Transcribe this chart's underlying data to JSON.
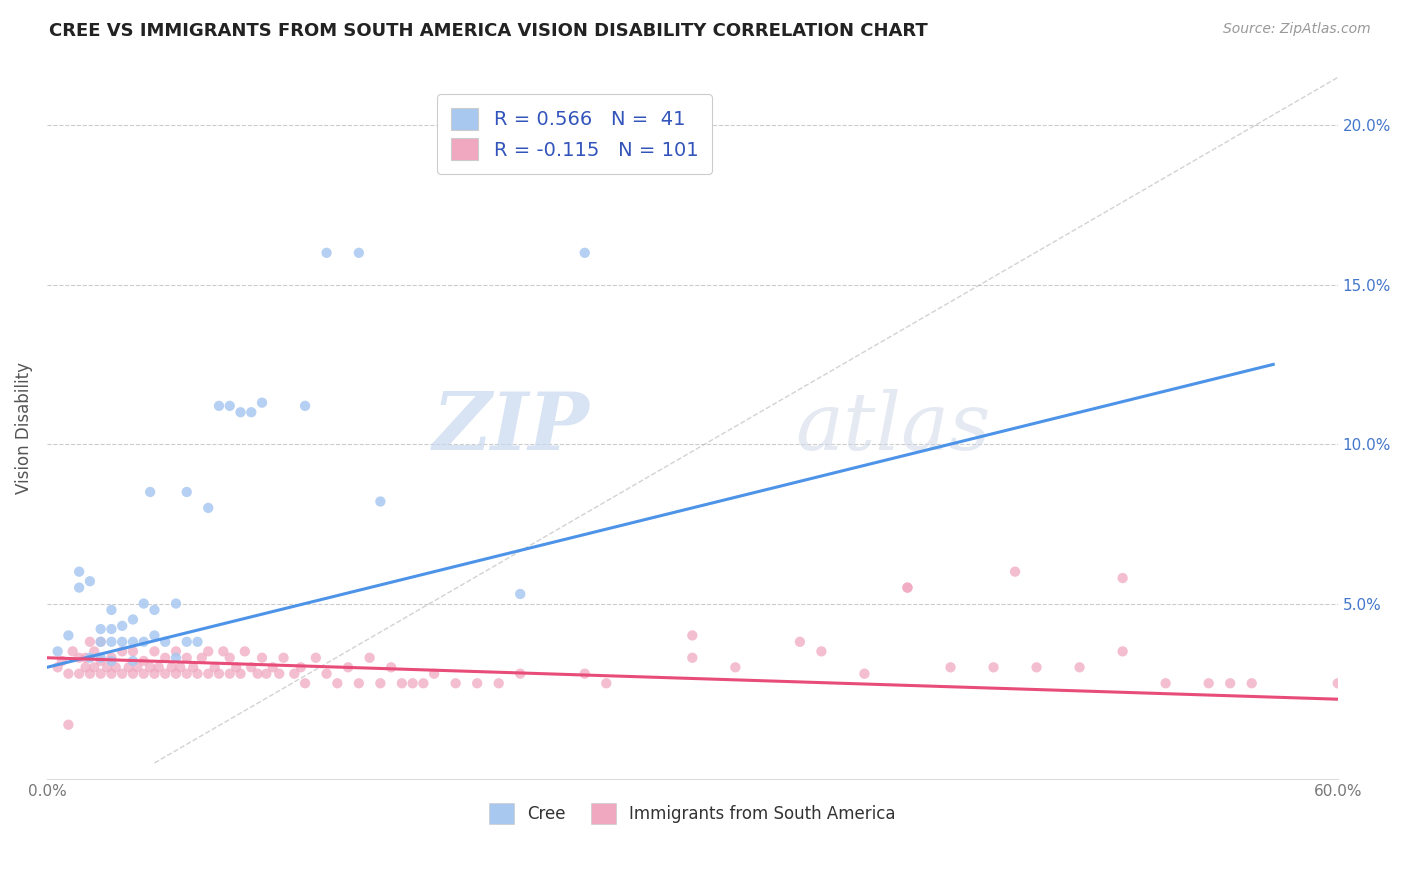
{
  "title": "CREE VS IMMIGRANTS FROM SOUTH AMERICA VISION DISABILITY CORRELATION CHART",
  "source": "Source: ZipAtlas.com",
  "ylabel": "Vision Disability",
  "xlim": [
    0.0,
    0.6
  ],
  "ylim": [
    -0.005,
    0.215
  ],
  "xticks": [
    0.0,
    0.1,
    0.2,
    0.3,
    0.4,
    0.5,
    0.6
  ],
  "xticklabels": [
    "0.0%",
    "",
    "",
    "",
    "",
    "",
    "60.0%"
  ],
  "yticks_left": [],
  "yticks_right": [
    0.05,
    0.1,
    0.15,
    0.2
  ],
  "yticklabels_right": [
    "5.0%",
    "10.0%",
    "15.0%",
    "20.0%"
  ],
  "cree_color": "#a8c8f0",
  "immig_color": "#f0a8c0",
  "cree_line_color": "#4d94e8",
  "immig_line_color": "#e84d7a",
  "diag_line_color": "#c0c0c0",
  "R_cree": 0.566,
  "N_cree": 41,
  "R_immig": -0.115,
  "N_immig": 101,
  "legend_label_cree": "Cree",
  "legend_label_immig": "Immigrants from South America",
  "watermark_zip": "ZIP",
  "watermark_atlas": "atlas",
  "title_color": "#222222",
  "title_fontsize": 13,
  "axis_label_color": "#555555",
  "axis_tick_color": "#777777",
  "grid_color": "#cccccc",
  "legend_text_color": "#3355bb",
  "cree_scatter_x": [
    0.005,
    0.01,
    0.015,
    0.015,
    0.02,
    0.02,
    0.025,
    0.025,
    0.025,
    0.03,
    0.03,
    0.03,
    0.03,
    0.035,
    0.035,
    0.04,
    0.04,
    0.04,
    0.045,
    0.045,
    0.048,
    0.05,
    0.05,
    0.055,
    0.06,
    0.06,
    0.065,
    0.065,
    0.07,
    0.075,
    0.08,
    0.085,
    0.09,
    0.095,
    0.1,
    0.12,
    0.13,
    0.145,
    0.155,
    0.22,
    0.25
  ],
  "cree_scatter_y": [
    0.035,
    0.04,
    0.055,
    0.06,
    0.033,
    0.057,
    0.033,
    0.038,
    0.042,
    0.032,
    0.038,
    0.042,
    0.048,
    0.038,
    0.043,
    0.032,
    0.038,
    0.045,
    0.038,
    0.05,
    0.085,
    0.04,
    0.048,
    0.038,
    0.033,
    0.05,
    0.038,
    0.085,
    0.038,
    0.08,
    0.112,
    0.112,
    0.11,
    0.11,
    0.113,
    0.112,
    0.16,
    0.16,
    0.082,
    0.053,
    0.16
  ],
  "immig_scatter_x": [
    0.005,
    0.007,
    0.01,
    0.012,
    0.015,
    0.015,
    0.018,
    0.018,
    0.02,
    0.02,
    0.022,
    0.022,
    0.025,
    0.025,
    0.025,
    0.028,
    0.03,
    0.03,
    0.032,
    0.035,
    0.035,
    0.038,
    0.04,
    0.04,
    0.042,
    0.045,
    0.045,
    0.048,
    0.05,
    0.05,
    0.052,
    0.055,
    0.055,
    0.058,
    0.06,
    0.06,
    0.062,
    0.065,
    0.065,
    0.068,
    0.07,
    0.072,
    0.075,
    0.075,
    0.078,
    0.08,
    0.082,
    0.085,
    0.085,
    0.088,
    0.09,
    0.092,
    0.095,
    0.098,
    0.1,
    0.102,
    0.105,
    0.108,
    0.11,
    0.115,
    0.118,
    0.12,
    0.125,
    0.13,
    0.135,
    0.14,
    0.145,
    0.15,
    0.155,
    0.16,
    0.165,
    0.17,
    0.175,
    0.18,
    0.19,
    0.2,
    0.21,
    0.22,
    0.25,
    0.26,
    0.3,
    0.32,
    0.36,
    0.38,
    0.4,
    0.42,
    0.44,
    0.46,
    0.48,
    0.5,
    0.52,
    0.54,
    0.56,
    0.3,
    0.35,
    0.4,
    0.45,
    0.5,
    0.55,
    0.6,
    0.01
  ],
  "immig_scatter_y": [
    0.03,
    0.032,
    0.028,
    0.035,
    0.028,
    0.033,
    0.03,
    0.033,
    0.028,
    0.038,
    0.03,
    0.035,
    0.028,
    0.032,
    0.038,
    0.03,
    0.028,
    0.033,
    0.03,
    0.028,
    0.035,
    0.03,
    0.028,
    0.035,
    0.03,
    0.028,
    0.032,
    0.03,
    0.028,
    0.035,
    0.03,
    0.028,
    0.033,
    0.03,
    0.028,
    0.035,
    0.03,
    0.028,
    0.033,
    0.03,
    0.028,
    0.033,
    0.028,
    0.035,
    0.03,
    0.028,
    0.035,
    0.028,
    0.033,
    0.03,
    0.028,
    0.035,
    0.03,
    0.028,
    0.033,
    0.028,
    0.03,
    0.028,
    0.033,
    0.028,
    0.03,
    0.025,
    0.033,
    0.028,
    0.025,
    0.03,
    0.025,
    0.033,
    0.025,
    0.03,
    0.025,
    0.025,
    0.025,
    0.028,
    0.025,
    0.025,
    0.025,
    0.028,
    0.028,
    0.025,
    0.033,
    0.03,
    0.035,
    0.028,
    0.055,
    0.03,
    0.03,
    0.03,
    0.03,
    0.058,
    0.025,
    0.025,
    0.025,
    0.04,
    0.038,
    0.055,
    0.06,
    0.035,
    0.025,
    0.025,
    0.012
  ],
  "cree_trend_x": [
    0.0,
    0.57
  ],
  "cree_trend_y": [
    0.03,
    0.125
  ],
  "immig_trend_x": [
    0.0,
    0.6
  ],
  "immig_trend_y": [
    0.033,
    0.02
  ],
  "diag_line_x": [
    0.05,
    0.6
  ],
  "diag_line_y": [
    0.0,
    0.215
  ],
  "background_color": "#ffffff"
}
